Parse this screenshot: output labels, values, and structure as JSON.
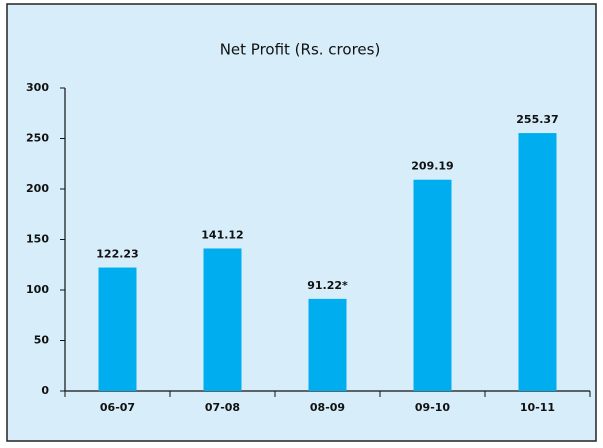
{
  "chart_data": {
    "type": "bar",
    "title": "Net Profit (Rs. crores)",
    "categories": [
      "06-07",
      "07-08",
      "08-09",
      "09-10",
      "10-11"
    ],
    "values": [
      122.23,
      141.12,
      91.22,
      209.19,
      255.37
    ],
    "value_labels": [
      "122.23",
      "141.12",
      "91.22*",
      "209.19",
      "255.37"
    ],
    "color": "#00aeef",
    "ylim": [
      0,
      300
    ],
    "yticks": [
      0,
      50,
      100,
      150,
      200,
      250,
      300
    ],
    "grid": false
  }
}
